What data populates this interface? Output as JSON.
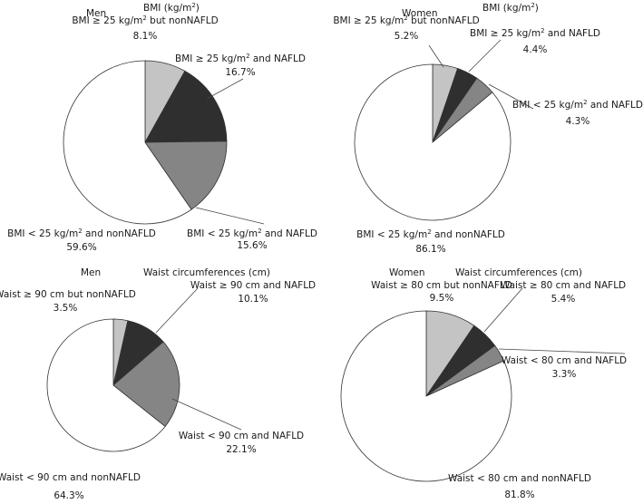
{
  "chart_data": [
    {
      "type": "pie",
      "group": "Men",
      "measure": "BMI (kg/m",
      "measure_sup": "2",
      "measure_end": ")",
      "slices": [
        {
          "line1": "BMI ≥ 25 kg/m",
          "sup": "2",
          "line1_end": " but nonNAFLD",
          "pct": "8.1%",
          "value": 8.1,
          "color": "#c4c4c4"
        },
        {
          "line1": "BMI ≥ 25 kg/m",
          "sup": "2",
          "line1_end": " and NAFLD",
          "pct": "16.7%",
          "value": 16.7,
          "color": "#2f2f2f"
        },
        {
          "line1": "BMI < 25 kg/m",
          "sup": "2",
          "line1_end": " and NAFLD",
          "pct": "15.6%",
          "value": 15.6,
          "color": "#858585"
        },
        {
          "line1": "BMI < 25 kg/m",
          "sup": "2",
          "line1_end": " and nonNAFLD",
          "pct": "59.6%",
          "value": 59.6,
          "color": "#ffffff"
        }
      ]
    },
    {
      "type": "pie",
      "group": "Women",
      "measure": "BMI (kg/m",
      "measure_sup": "2",
      "measure_end": ")",
      "slices": [
        {
          "line1": "BMI ≥ 25 kg/m",
          "sup": "2",
          "line1_end": " but nonNAFLD",
          "pct": "5.2%",
          "value": 5.2,
          "color": "#c4c4c4"
        },
        {
          "line1": "BMI ≥ 25 kg/m",
          "sup": "2",
          "line1_end": " and NAFLD",
          "pct": "4.4%",
          "value": 4.4,
          "color": "#2f2f2f"
        },
        {
          "line1": "BMI < 25 kg/m",
          "sup": "2",
          "line1_end": " and NAFLD",
          "pct": "4.3%",
          "value": 4.3,
          "color": "#858585"
        },
        {
          "line1": "BMI < 25 kg/m",
          "sup": "2",
          "line1_end": " and nonNAFLD",
          "pct": "86.1%",
          "value": 86.1,
          "color": "#ffffff"
        }
      ]
    },
    {
      "type": "pie",
      "group": "Men",
      "measure": "Waist circumferences (cm)",
      "measure_sup": "",
      "measure_end": "",
      "slices": [
        {
          "line1": "Waist ≥ 90 cm but nonNAFLD",
          "sup": "",
          "line1_end": "",
          "pct": "3.5%",
          "value": 3.5,
          "color": "#c4c4c4"
        },
        {
          "line1": "Waist ≥ 90 cm and NAFLD",
          "sup": "",
          "line1_end": "",
          "pct": "10.1%",
          "value": 10.1,
          "color": "#2f2f2f"
        },
        {
          "line1": "Waist < 90 cm and NAFLD",
          "sup": "",
          "line1_end": "",
          "pct": "22.1%",
          "value": 22.1,
          "color": "#858585"
        },
        {
          "line1": "Waist < 90 cm and nonNAFLD",
          "sup": "",
          "line1_end": "",
          "pct": "64.3%",
          "value": 64.3,
          "color": "#ffffff"
        }
      ]
    },
    {
      "type": "pie",
      "group": "Women",
      "measure": "Waist circumferences (cm)",
      "measure_sup": "",
      "measure_end": "",
      "slices": [
        {
          "line1": "Waist ≥ 80 cm but nonNAFLD",
          "sup": "",
          "line1_end": "",
          "pct": "9.5%",
          "value": 9.5,
          "color": "#c4c4c4"
        },
        {
          "line1": "Waist ≥ 80 cm and NAFLD",
          "sup": "",
          "line1_end": "",
          "pct": "5.4%",
          "value": 5.4,
          "color": "#2f2f2f"
        },
        {
          "line1": "Waist < 80 cm and NAFLD",
          "sup": "",
          "line1_end": "",
          "pct": "3.3%",
          "value": 3.3,
          "color": "#858585"
        },
        {
          "line1": "Waist < 80 cm and nonNAFLD",
          "sup": "",
          "line1_end": "",
          "pct": "81.8%",
          "value": 81.8,
          "color": "#ffffff"
        }
      ]
    }
  ]
}
